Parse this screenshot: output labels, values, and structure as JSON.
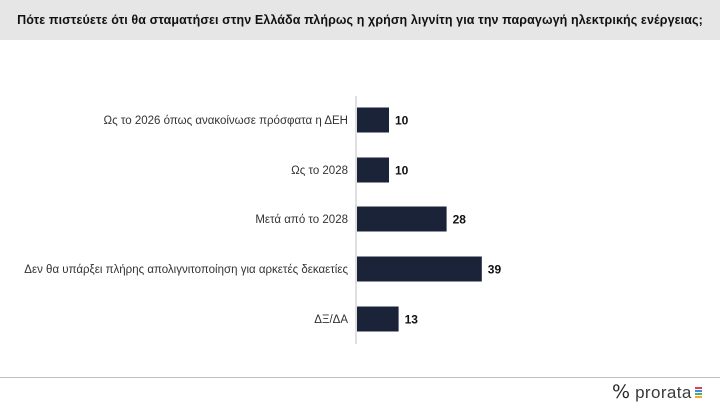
{
  "title": "Πότε πιστεύετε ότι θα σταματήσει στην Ελλάδα πλήρως η χρήση λιγνίτη για την παραγωγή ηλεκτρικής ενέργειας;",
  "colors": {
    "bar": "#1b2338",
    "title_background": "#e6e6e6",
    "axis": "#bfbfbf",
    "logo_stripes": [
      "#e23c5a",
      "#3a8fd6",
      "#49b36b",
      "#f0a93a"
    ]
  },
  "chart_data": {
    "type": "bar",
    "orientation": "horizontal",
    "categories": [
      "Ως το 2026 όπως ανακοίνωσε πρόσφατα η ΔΕΗ",
      "Ως το 2028",
      "Μετά από το 2028",
      "Δεν θα υπάρξει πλήρης απολιγνιτοποίηση για αρκετές δεκαετίες",
      "ΔΞ/ΔΑ"
    ],
    "values": [
      10,
      10,
      28,
      39,
      13
    ],
    "xlim": [
      0,
      100
    ],
    "grid": false,
    "legend": "none"
  },
  "footer": {
    "logo_mark": "%",
    "logo_text": "prorata"
  }
}
